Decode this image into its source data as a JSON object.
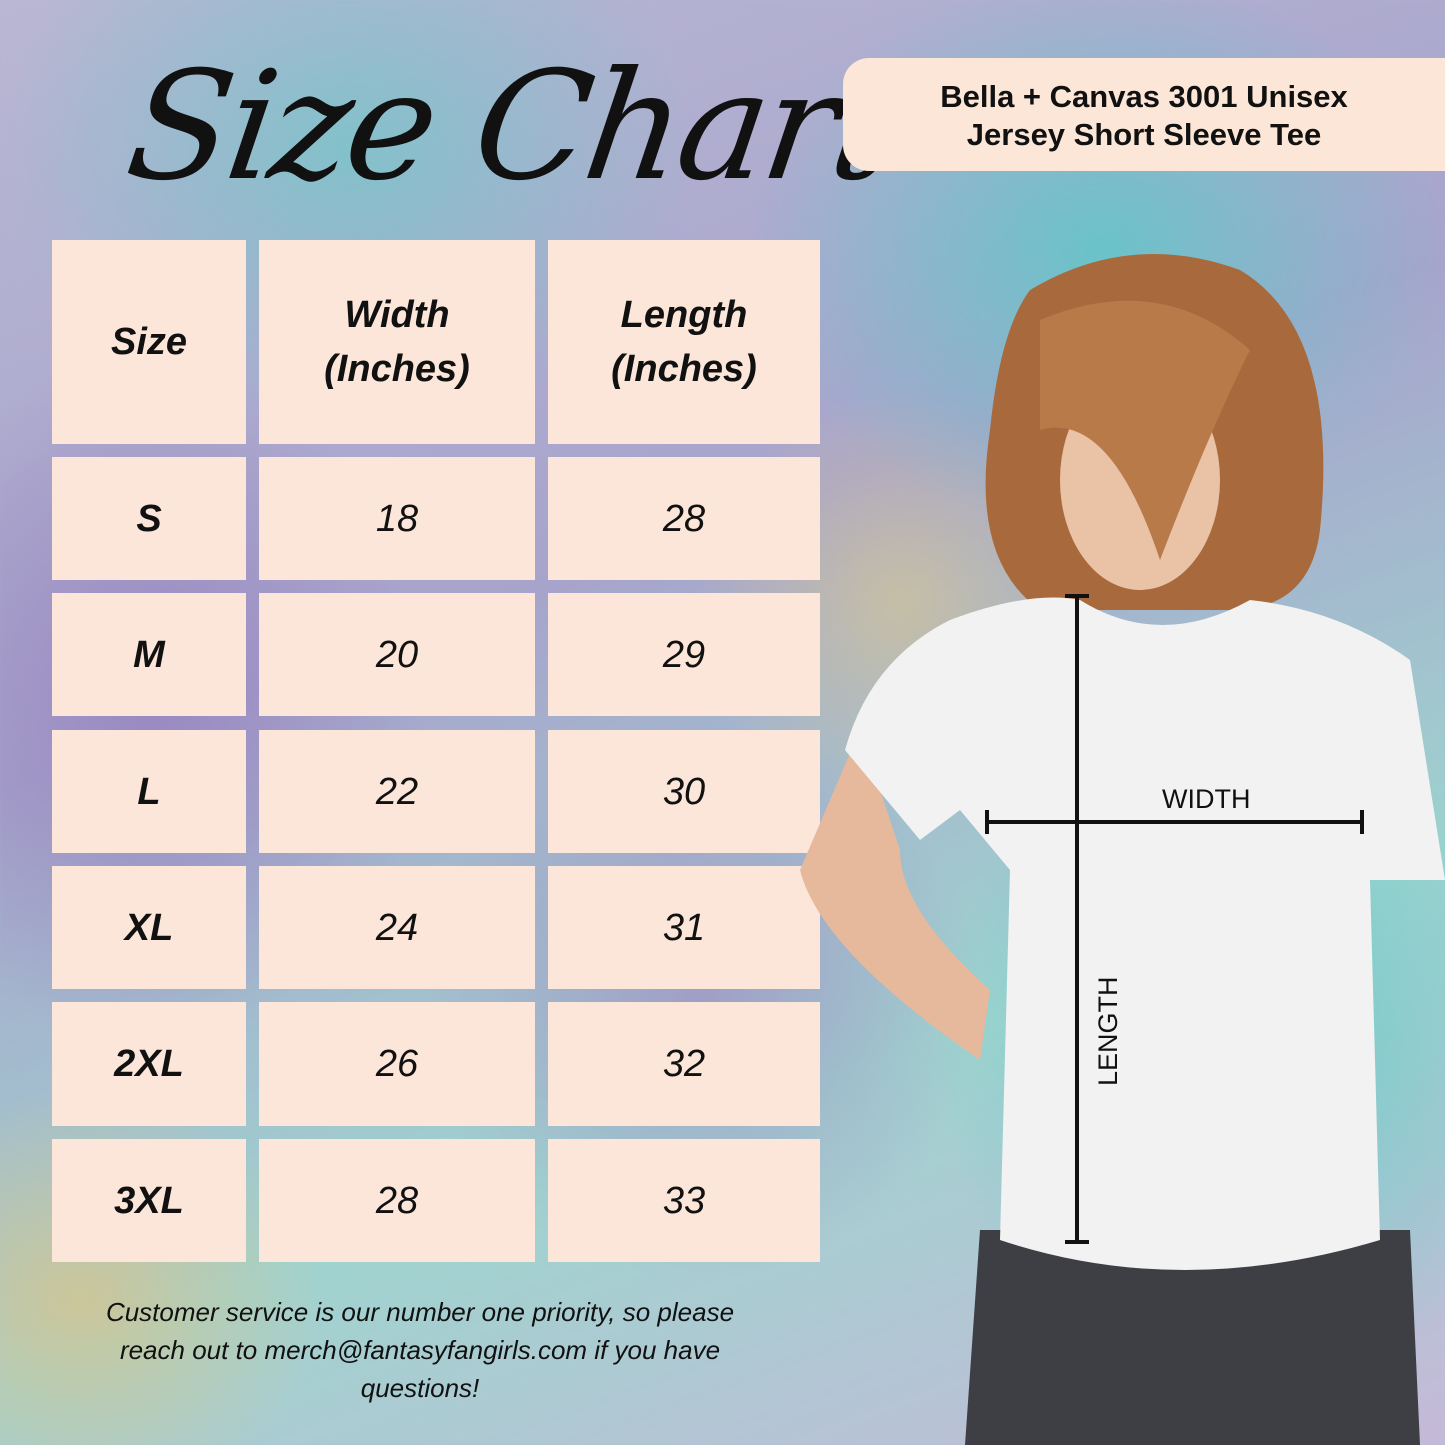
{
  "title": "Size Chart",
  "product": {
    "line1": "Bella + Canvas 3001 Unisex",
    "line2": "Jersey Short Sleeve Tee"
  },
  "table": {
    "headers": [
      "Size",
      "Width\n(Inches)",
      "Length\n(Inches)"
    ],
    "rows": [
      [
        "S",
        "18",
        "28"
      ],
      [
        "M",
        "20",
        "29"
      ],
      [
        "L",
        "22",
        "30"
      ],
      [
        "XL",
        "24",
        "31"
      ],
      [
        "2XL",
        "26",
        "32"
      ],
      [
        "3XL",
        "28",
        "33"
      ]
    ]
  },
  "diagram": {
    "width_label": "WIDTH",
    "length_label": "LENGTH"
  },
  "footer": "Customer service is our number one priority, so please reach out to merch@fantasyfangirls.com if you have questions!",
  "colors": {
    "cell": "#fbe6d9",
    "text": "#111111"
  }
}
